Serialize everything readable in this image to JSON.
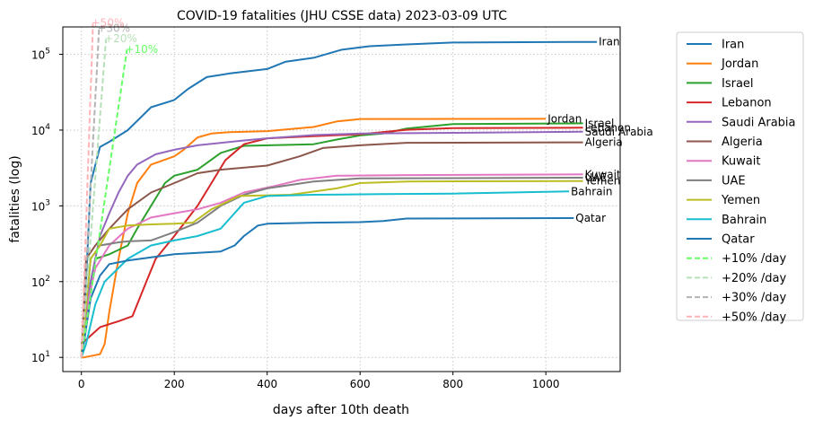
{
  "chart_data": {
    "type": "line",
    "title": "COVID-19 fatalities (JHU CSSE data) 2023-03-09 UTC",
    "xlabel": "days after 10th death",
    "ylabel": "fatalities (log)",
    "xlim": [
      -40,
      1160
    ],
    "ylim": [
      6.5,
      230000
    ],
    "yscale": "log",
    "grid": true,
    "legend_position": "outside-right",
    "x_ticks": [
      {
        "value": 0,
        "label": "0"
      },
      {
        "value": 200,
        "label": "200"
      },
      {
        "value": 400,
        "label": "400"
      },
      {
        "value": 600,
        "label": "600"
      },
      {
        "value": 800,
        "label": "800"
      },
      {
        "value": 1000,
        "label": "1000"
      }
    ],
    "y_ticks": [
      {
        "value": 10,
        "base": "10",
        "exp": "1"
      },
      {
        "value": 100,
        "base": "10",
        "exp": "2"
      },
      {
        "value": 1000,
        "base": "10",
        "exp": "3"
      },
      {
        "value": 10000,
        "base": "10",
        "exp": "4"
      },
      {
        "value": 100000,
        "base": "10",
        "exp": "5"
      }
    ],
    "series": [
      {
        "name": "Iran",
        "color": "#1f77b4",
        "end_label": "Iran",
        "points": [
          [
            0,
            10
          ],
          [
            10,
            100
          ],
          [
            20,
            2000
          ],
          [
            40,
            6000
          ],
          [
            60,
            7000
          ],
          [
            100,
            10000
          ],
          [
            150,
            20000
          ],
          [
            200,
            25000
          ],
          [
            230,
            35000
          ],
          [
            270,
            50000
          ],
          [
            320,
            56000
          ],
          [
            400,
            64000
          ],
          [
            440,
            80000
          ],
          [
            500,
            90000
          ],
          [
            560,
            115000
          ],
          [
            620,
            128000
          ],
          [
            700,
            135000
          ],
          [
            800,
            143000
          ],
          [
            1000,
            145000
          ],
          [
            1110,
            146000
          ]
        ]
      },
      {
        "name": "Jordan",
        "color": "#ff7f0e",
        "end_label": "Jordan",
        "points": [
          [
            0,
            10
          ],
          [
            5,
            10
          ],
          [
            40,
            11
          ],
          [
            50,
            15
          ],
          [
            60,
            40
          ],
          [
            80,
            200
          ],
          [
            100,
            800
          ],
          [
            120,
            2000
          ],
          [
            150,
            3500
          ],
          [
            200,
            4500
          ],
          [
            220,
            5500
          ],
          [
            250,
            8000
          ],
          [
            280,
            9000
          ],
          [
            320,
            9400
          ],
          [
            400,
            9700
          ],
          [
            500,
            11000
          ],
          [
            550,
            13000
          ],
          [
            600,
            14000
          ],
          [
            1000,
            14100
          ]
        ]
      },
      {
        "name": "Israel",
        "color": "#2ca02c",
        "end_label": "Israel",
        "points": [
          [
            0,
            10
          ],
          [
            20,
            100
          ],
          [
            30,
            200
          ],
          [
            60,
            230
          ],
          [
            100,
            300
          ],
          [
            120,
            500
          ],
          [
            150,
            1000
          ],
          [
            180,
            2000
          ],
          [
            200,
            2500
          ],
          [
            250,
            3000
          ],
          [
            300,
            5000
          ],
          [
            350,
            6200
          ],
          [
            500,
            6500
          ],
          [
            550,
            7500
          ],
          [
            600,
            8500
          ],
          [
            650,
            9000
          ],
          [
            700,
            10500
          ],
          [
            800,
            12000
          ],
          [
            1080,
            12300
          ]
        ]
      },
      {
        "name": "Lebanon",
        "color": "#d62728",
        "end_label": "Lebanon",
        "points": [
          [
            0,
            15
          ],
          [
            40,
            25
          ],
          [
            80,
            30
          ],
          [
            110,
            35
          ],
          [
            140,
            100
          ],
          [
            160,
            200
          ],
          [
            200,
            400
          ],
          [
            250,
            1000
          ],
          [
            280,
            2000
          ],
          [
            310,
            4000
          ],
          [
            350,
            6500
          ],
          [
            400,
            7800
          ],
          [
            500,
            8300
          ],
          [
            600,
            8800
          ],
          [
            700,
            10100
          ],
          [
            800,
            10600
          ],
          [
            1080,
            10750
          ]
        ]
      },
      {
        "name": "Saudi Arabia",
        "color": "#9467bd",
        "end_label": "Saudi Arabia",
        "points": [
          [
            0,
            10
          ],
          [
            20,
            100
          ],
          [
            40,
            400
          ],
          [
            60,
            800
          ],
          [
            80,
            1500
          ],
          [
            100,
            2500
          ],
          [
            120,
            3500
          ],
          [
            160,
            4800
          ],
          [
            200,
            5500
          ],
          [
            250,
            6300
          ],
          [
            350,
            7300
          ],
          [
            400,
            7800
          ],
          [
            500,
            8600
          ],
          [
            600,
            9000
          ],
          [
            800,
            9200
          ],
          [
            1080,
            9500
          ]
        ]
      },
      {
        "name": "Algeria",
        "color": "#8c564b",
        "end_label": "Algeria",
        "points": [
          [
            0,
            10
          ],
          [
            10,
            200
          ],
          [
            30,
            300
          ],
          [
            60,
            500
          ],
          [
            100,
            900
          ],
          [
            150,
            1500
          ],
          [
            200,
            2000
          ],
          [
            250,
            2700
          ],
          [
            300,
            3000
          ],
          [
            400,
            3400
          ],
          [
            470,
            4500
          ],
          [
            520,
            5800
          ],
          [
            600,
            6300
          ],
          [
            700,
            6800
          ],
          [
            1080,
            6900
          ]
        ]
      },
      {
        "name": "Kuwait",
        "color": "#e377c2",
        "end_label": "Kuwait",
        "points": [
          [
            0,
            10
          ],
          [
            10,
            40
          ],
          [
            30,
            150
          ],
          [
            60,
            300
          ],
          [
            100,
            500
          ],
          [
            150,
            700
          ],
          [
            200,
            800
          ],
          [
            250,
            900
          ],
          [
            300,
            1100
          ],
          [
            350,
            1500
          ],
          [
            420,
            1850
          ],
          [
            470,
            2200
          ],
          [
            550,
            2500
          ],
          [
            700,
            2550
          ],
          [
            1080,
            2600
          ]
        ]
      },
      {
        "name": "UAE",
        "color": "#7f7f7f",
        "end_label": "UAE",
        "points": [
          [
            0,
            10
          ],
          [
            20,
            200
          ],
          [
            40,
            300
          ],
          [
            80,
            330
          ],
          [
            100,
            340
          ],
          [
            150,
            350
          ],
          [
            200,
            450
          ],
          [
            250,
            600
          ],
          [
            300,
            1000
          ],
          [
            350,
            1400
          ],
          [
            400,
            1700
          ],
          [
            500,
            2100
          ],
          [
            600,
            2300
          ],
          [
            1080,
            2350
          ]
        ]
      },
      {
        "name": "Yemen",
        "color": "#bcbd22",
        "end_label": "Yemen",
        "points": [
          [
            0,
            10
          ],
          [
            10,
            50
          ],
          [
            20,
            200
          ],
          [
            40,
            300
          ],
          [
            60,
            500
          ],
          [
            100,
            550
          ],
          [
            150,
            570
          ],
          [
            200,
            580
          ],
          [
            240,
            600
          ],
          [
            280,
            900
          ],
          [
            340,
            1350
          ],
          [
            450,
            1400
          ],
          [
            550,
            1700
          ],
          [
            600,
            2000
          ],
          [
            700,
            2100
          ],
          [
            1080,
            2130
          ]
        ]
      },
      {
        "name": "Bahrain",
        "color": "#17becf",
        "end_label": "Bahrain",
        "points": [
          [
            0,
            10
          ],
          [
            10,
            15
          ],
          [
            30,
            50
          ],
          [
            50,
            100
          ],
          [
            100,
            200
          ],
          [
            150,
            300
          ],
          [
            200,
            350
          ],
          [
            250,
            400
          ],
          [
            300,
            500
          ],
          [
            350,
            1100
          ],
          [
            400,
            1350
          ],
          [
            500,
            1400
          ],
          [
            650,
            1430
          ],
          [
            800,
            1450
          ],
          [
            1050,
            1550
          ]
        ]
      },
      {
        "name": "Qatar",
        "color": "#1f77b4",
        "end_label": "Qatar",
        "points": [
          [
            0,
            10
          ],
          [
            5,
            15
          ],
          [
            20,
            60
          ],
          [
            40,
            120
          ],
          [
            60,
            170
          ],
          [
            100,
            190
          ],
          [
            200,
            230
          ],
          [
            300,
            250
          ],
          [
            330,
            300
          ],
          [
            350,
            400
          ],
          [
            380,
            550
          ],
          [
            400,
            580
          ],
          [
            500,
            600
          ],
          [
            600,
            610
          ],
          [
            650,
            630
          ],
          [
            700,
            680
          ],
          [
            1060,
            690
          ]
        ]
      },
      {
        "name": "+10% /day",
        "color": "#66ff66",
        "dashed": true,
        "end_label": "+10%",
        "growth": 1.1,
        "x_end": 98
      },
      {
        "name": "+20% /day",
        "color": "#b8e0b8",
        "dashed": true,
        "end_label": "+20%",
        "growth": 1.2,
        "x_end": 53
      },
      {
        "name": "+30% /day",
        "color": "#b3b3b3",
        "dashed": true,
        "end_label": "+30%",
        "growth": 1.3,
        "x_end": 38
      },
      {
        "name": "+50% /day",
        "color": "#ffb3b8",
        "dashed": true,
        "end_label": "+50%",
        "growth": 1.5,
        "x_end": 25
      }
    ]
  }
}
